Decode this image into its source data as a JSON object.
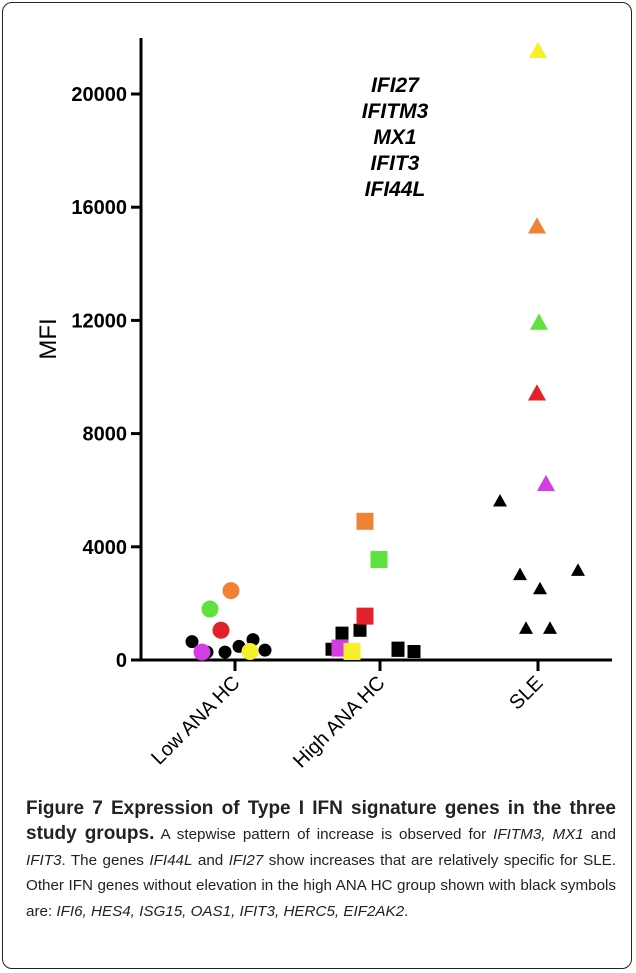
{
  "chart_data": {
    "type": "scatter",
    "ylabel": "MFI",
    "xlabel": "",
    "ylim": [
      0,
      22000
    ],
    "yticks": [
      "0",
      "4000",
      "8000",
      "12000",
      "16000",
      "20000"
    ],
    "categories": [
      "Low ANA HC",
      "High ANA HC",
      "SLE"
    ],
    "legend_position": "top-center",
    "legend": [
      {
        "name": "IFI27",
        "color": "#f6ef2c"
      },
      {
        "name": "IFITM3",
        "color": "#ef8234"
      },
      {
        "name": "MX1",
        "color": "#5fe23e"
      },
      {
        "name": "IFIT3",
        "color": "#e3212a"
      },
      {
        "name": "IFI44L",
        "color": "#d43de6"
      }
    ],
    "markers": {
      "Low ANA HC": "circle",
      "High ANA HC": "square",
      "SLE": "triangle"
    },
    "series": [
      {
        "name": "IFITM3",
        "color": "#ef8234",
        "values": [
          2450,
          4900,
          15300
        ]
      },
      {
        "name": "MX1",
        "color": "#5fe23e",
        "values": [
          1800,
          3550,
          11900
        ]
      },
      {
        "name": "IFIT3",
        "color": "#e3212a",
        "values": [
          1050,
          1550,
          9400
        ]
      },
      {
        "name": "IFI44L",
        "color": "#d43de6",
        "values": [
          280,
          420,
          6200
        ]
      },
      {
        "name": "IFI27",
        "color": "#f6ef2c",
        "values": [
          300,
          300,
          21500
        ]
      }
    ],
    "other_genes": {
      "color": "#000000",
      "points": [
        {
          "category": "Low ANA HC",
          "values": [
            650,
            280,
            280,
            480,
            720,
            350
          ]
        },
        {
          "category": "High ANA HC",
          "values": [
            950,
            1050,
            380,
            420,
            300,
            340
          ]
        },
        {
          "category": "SLE",
          "values": [
            5600,
            3000,
            2500,
            3150,
            1100,
            1100
          ]
        }
      ]
    }
  },
  "caption": {
    "figure_label": "Figure 7",
    "title": "Expression of Type I IFN signature genes in the three study groups",
    "title_end": ".",
    "body": [
      {
        "text": " A stepwise pattern of increase is observed for ",
        "italic": false
      },
      {
        "text": "IFITM3, MX1",
        "italic": true
      },
      {
        "text": " and ",
        "italic": false
      },
      {
        "text": "IFIT3",
        "italic": true
      },
      {
        "text": ". The genes ",
        "italic": false
      },
      {
        "text": "IFI44L",
        "italic": true
      },
      {
        "text": " and ",
        "italic": false
      },
      {
        "text": "IFI27",
        "italic": true
      },
      {
        "text": " show increases that are relatively specific for SLE. Other IFN genes without elevation in the high ANA HC group shown with black symbols are: ",
        "italic": false
      },
      {
        "text": "IFI6, HES4, ISG15, OAS1, IFIT3, HERC5, EIF2AK2",
        "italic": true
      },
      {
        "text": ".",
        "italic": false
      }
    ]
  }
}
